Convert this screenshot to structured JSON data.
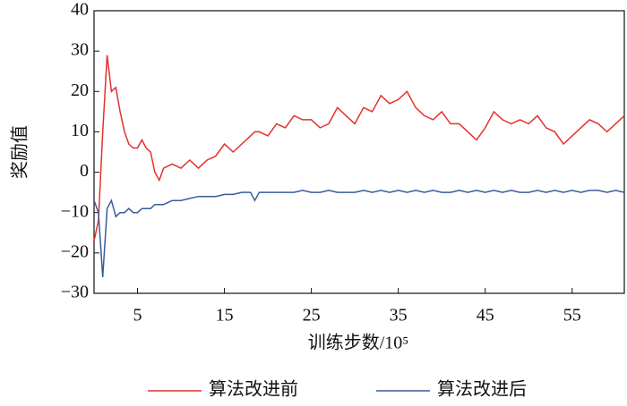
{
  "chart_data": {
    "type": "line",
    "x_label": "训练步数/10⁵",
    "y_label": "奖励值",
    "x": [
      0,
      0.5,
      1,
      1.5,
      2,
      2.5,
      3,
      3.5,
      4,
      4.5,
      5,
      5.5,
      6,
      6.5,
      7,
      7.5,
      8,
      9,
      10,
      11,
      12,
      13,
      14,
      15,
      16,
      17,
      18,
      18.5,
      19,
      20,
      21,
      22,
      23,
      24,
      25,
      26,
      27,
      28,
      29,
      30,
      31,
      32,
      33,
      34,
      35,
      36,
      37,
      38,
      39,
      40,
      41,
      42,
      43,
      44,
      45,
      46,
      47,
      48,
      49,
      50,
      51,
      52,
      53,
      54,
      55,
      56,
      57,
      58,
      59,
      60,
      61
    ],
    "series": [
      {
        "name": "算法改进前",
        "color": "#e3312d",
        "values": [
          -17,
          -12,
          10,
          29,
          20,
          21,
          15,
          10,
          7,
          6,
          6,
          8,
          6,
          5,
          0,
          -2,
          1,
          2,
          1,
          3,
          1,
          3,
          4,
          7,
          5,
          7,
          9,
          10,
          10,
          9,
          12,
          11,
          14,
          13,
          13,
          11,
          12,
          16,
          14,
          12,
          16,
          15,
          19,
          17,
          18,
          20,
          16,
          14,
          13,
          15,
          12,
          12,
          10,
          8,
          11,
          15,
          13,
          12,
          13,
          12,
          14,
          11,
          10,
          7,
          9,
          11,
          13,
          12,
          10,
          12,
          14
        ]
      },
      {
        "name": "算法改进后",
        "color": "#3a5c9c",
        "values": [
          -7,
          -10,
          -26,
          -9,
          -7,
          -11,
          -10,
          -10,
          -9,
          -10,
          -10,
          -9,
          -9,
          -9,
          -8,
          -8,
          -8,
          -7,
          -7,
          -6.5,
          -6,
          -6,
          -6,
          -5.5,
          -5.5,
          -5,
          -5,
          -7,
          -5,
          -5,
          -5,
          -5,
          -5,
          -4.5,
          -5,
          -5,
          -4.5,
          -5,
          -5,
          -5,
          -4.5,
          -5,
          -4.5,
          -5,
          -4.5,
          -5,
          -4.5,
          -5,
          -4.5,
          -5,
          -5,
          -4.5,
          -5,
          -4.5,
          -5,
          -4.5,
          -5,
          -4.5,
          -5,
          -5,
          -4.5,
          -5,
          -4.5,
          -5,
          -4.5,
          -5,
          -4.5,
          -4.5,
          -5,
          -4.5,
          -5
        ]
      }
    ],
    "xlim": [
      0,
      61
    ],
    "ylim": [
      -30,
      40
    ],
    "xticks": [
      5,
      15,
      25,
      35,
      45,
      55
    ],
    "yticks": [
      {
        "value": -30,
        "label": "−30"
      },
      {
        "value": -20,
        "label": "−20"
      },
      {
        "value": -10,
        "label": "−10"
      },
      0,
      10,
      20,
      30,
      40
    ],
    "legend": "bottom"
  }
}
